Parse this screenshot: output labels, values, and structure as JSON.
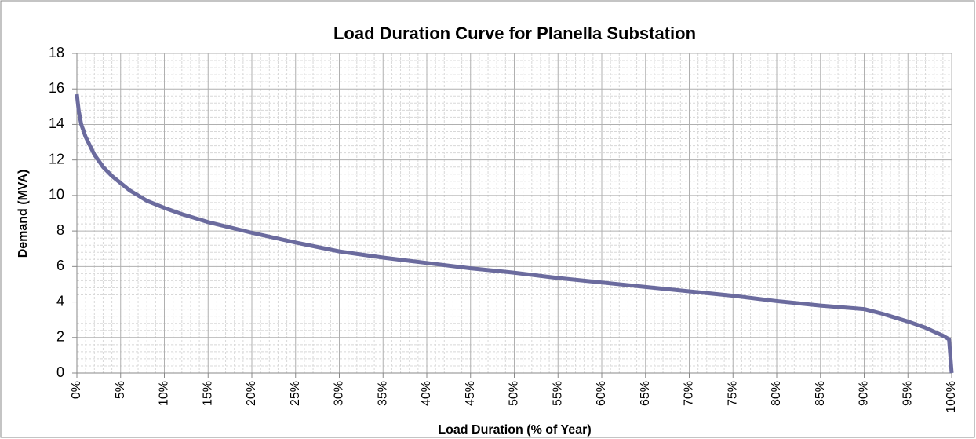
{
  "chart_data": {
    "type": "line",
    "title": "Load Duration Curve for Planella Substation",
    "x_label": "Load Duration (% of Year)",
    "y_label": "Demand (MVA)",
    "x": [
      0,
      0.2,
      0.5,
      1,
      1.5,
      2,
      3,
      4,
      5,
      6,
      7,
      8,
      10,
      12,
      15,
      20,
      25,
      30,
      35,
      40,
      45,
      50,
      55,
      60,
      65,
      70,
      75,
      80,
      85,
      90,
      92,
      95,
      97,
      99,
      99.7,
      100
    ],
    "series": [
      {
        "name": "Demand",
        "color": "#6b6b9e",
        "values": [
          15.7,
          14.8,
          14.0,
          13.3,
          12.8,
          12.3,
          11.6,
          11.1,
          10.7,
          10.3,
          10.0,
          9.7,
          9.3,
          8.95,
          8.5,
          7.9,
          7.35,
          6.85,
          6.5,
          6.2,
          5.9,
          5.65,
          5.35,
          5.1,
          4.85,
          4.6,
          4.35,
          4.05,
          3.8,
          3.6,
          3.35,
          2.9,
          2.55,
          2.1,
          1.9,
          0
        ]
      }
    ],
    "xlim": [
      0,
      100
    ],
    "xticks": [
      {
        "value": 0,
        "label": "0%"
      },
      {
        "value": 5,
        "label": "5%"
      },
      {
        "value": 10,
        "label": "10%"
      },
      {
        "value": 15,
        "label": "15%"
      },
      {
        "value": 20,
        "label": "20%"
      },
      {
        "value": 25,
        "label": "25%"
      },
      {
        "value": 30,
        "label": "30%"
      },
      {
        "value": 35,
        "label": "35%"
      },
      {
        "value": 40,
        "label": "40%"
      },
      {
        "value": 45,
        "label": "45%"
      },
      {
        "value": 50,
        "label": "50%"
      },
      {
        "value": 55,
        "label": "55%"
      },
      {
        "value": 60,
        "label": "60%"
      },
      {
        "value": 65,
        "label": "65%"
      },
      {
        "value": 70,
        "label": "70%"
      },
      {
        "value": 75,
        "label": "75%"
      },
      {
        "value": 80,
        "label": "80%"
      },
      {
        "value": 85,
        "label": "85%"
      },
      {
        "value": 90,
        "label": "90%"
      },
      {
        "value": 95,
        "label": "95%"
      },
      {
        "value": 100,
        "label": "100%"
      }
    ],
    "ylim": [
      0,
      18
    ],
    "yticks": [
      0,
      2,
      4,
      6,
      8,
      10,
      12,
      14,
      16,
      18
    ],
    "grid": true,
    "minor_grid": true
  }
}
